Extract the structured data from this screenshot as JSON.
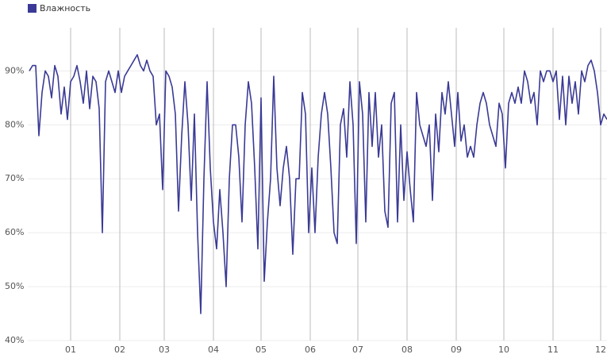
{
  "chart_data": {
    "type": "line",
    "series": [
      {
        "name": "Влажность",
        "color": "#3a3a96",
        "values": [
          90,
          91,
          91,
          78,
          86,
          90,
          89,
          85,
          91,
          89,
          82,
          87,
          81,
          88,
          89,
          91,
          88,
          84,
          90,
          83,
          89,
          88,
          83,
          60,
          88,
          90,
          88,
          86,
          90,
          86,
          89,
          90,
          91,
          92,
          93,
          91,
          90,
          92,
          90,
          89,
          80,
          82,
          68,
          90,
          89,
          87,
          82,
          64,
          78,
          88,
          80,
          66,
          82,
          60,
          45,
          70,
          88,
          72,
          62,
          57,
          68,
          60,
          50,
          70,
          80,
          80,
          74,
          62,
          80,
          88,
          84,
          72,
          57,
          85,
          51,
          62,
          70,
          89,
          72,
          65,
          72,
          76,
          70,
          56,
          70,
          70,
          86,
          82,
          60,
          72,
          60,
          74,
          82,
          86,
          82,
          72,
          60,
          58,
          80,
          83,
          74,
          88,
          80,
          58,
          88,
          82,
          62,
          86,
          76,
          86,
          74,
          80,
          64,
          61,
          84,
          86,
          62,
          80,
          66,
          75,
          68,
          62,
          86,
          80,
          78,
          76,
          80,
          66,
          82,
          75,
          86,
          82,
          88,
          82,
          76,
          86,
          77,
          80,
          74,
          76,
          74,
          80,
          84,
          86,
          84,
          80,
          78,
          76,
          84,
          82,
          72,
          84,
          86,
          84,
          87,
          84,
          90,
          88,
          84,
          86,
          80,
          90,
          88,
          90,
          90,
          88,
          90,
          81,
          89,
          80,
          89,
          84,
          88,
          82,
          90,
          88,
          91,
          92,
          90,
          86,
          80,
          82,
          81
        ]
      }
    ],
    "x": [
      -26,
      -24,
      -22,
      -20,
      -18,
      -16,
      -14,
      -12,
      -10,
      -8,
      -6,
      -4,
      -2,
      0,
      2,
      4,
      6,
      8,
      10,
      12,
      14,
      16,
      18,
      20,
      22,
      24,
      26,
      28,
      30,
      32,
      34,
      36,
      38,
      40,
      42,
      44,
      46,
      48,
      50,
      52,
      54,
      56,
      58,
      60,
      62,
      64,
      66,
      68,
      70,
      72,
      74,
      76,
      78,
      80,
      82,
      84,
      86,
      88,
      90,
      92,
      94,
      96,
      98,
      100,
      102,
      104,
      106,
      108,
      110,
      112,
      114,
      116,
      118,
      120,
      122,
      124,
      126,
      128,
      130,
      132,
      134,
      136,
      138,
      140,
      142,
      144,
      146,
      148,
      150,
      152,
      154,
      156,
      158,
      160,
      162,
      164,
      166,
      168,
      170,
      172,
      174,
      176,
      178,
      180,
      182,
      184,
      186,
      188,
      190,
      192,
      194,
      196,
      198,
      200,
      202,
      204,
      206,
      208,
      210,
      212,
      214,
      216,
      218,
      220,
      222,
      224,
      226,
      228,
      230,
      232,
      234,
      236,
      238,
      240,
      242,
      244,
      246,
      248,
      250,
      252,
      254,
      256,
      258,
      260,
      262,
      264,
      266,
      268,
      270,
      272,
      274,
      276,
      278,
      280,
      282,
      284,
      286,
      288,
      290,
      292,
      294,
      296,
      298,
      300,
      302,
      304,
      306,
      308,
      310,
      312,
      314,
      316,
      318,
      320,
      322,
      324,
      326,
      328,
      330,
      332,
      334,
      336,
      338
    ],
    "xlim": [
      -27,
      338
    ],
    "xticks": [
      {
        "value": 0,
        "label": "01"
      },
      {
        "value": 31,
        "label": "02"
      },
      {
        "value": 59,
        "label": "03"
      },
      {
        "value": 90,
        "label": "04"
      },
      {
        "value": 120,
        "label": "05"
      },
      {
        "value": 151,
        "label": "06"
      },
      {
        "value": 181,
        "label": "07"
      },
      {
        "value": 212,
        "label": "08"
      },
      {
        "value": 243,
        "label": "09"
      },
      {
        "value": 273,
        "label": "10"
      },
      {
        "value": 304,
        "label": "11"
      },
      {
        "value": 334,
        "label": "12"
      }
    ],
    "ylim": [
      40,
      98
    ],
    "yticks": [
      {
        "value": 40,
        "label": "40%"
      },
      {
        "value": 50,
        "label": "50%"
      },
      {
        "value": 60,
        "label": "60%"
      },
      {
        "value": 70,
        "label": "70%"
      },
      {
        "value": 80,
        "label": "80%"
      },
      {
        "value": 90,
        "label": "90%"
      }
    ],
    "grid": true
  }
}
